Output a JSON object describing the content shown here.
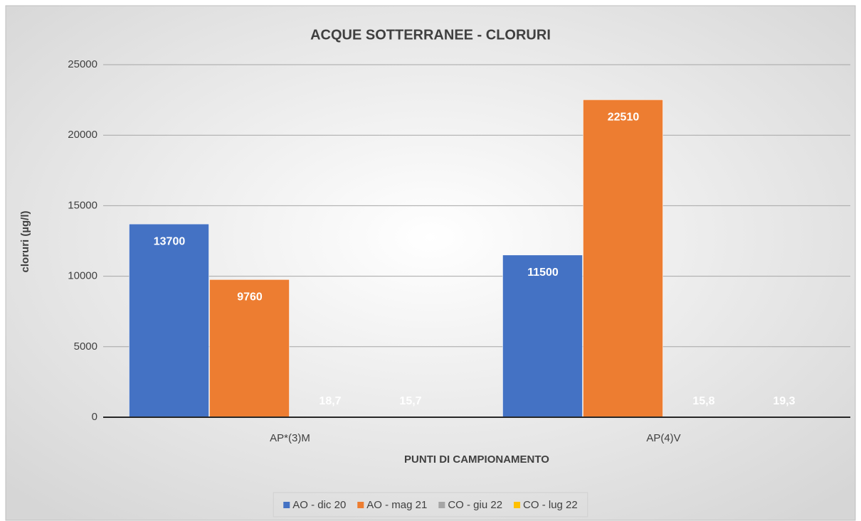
{
  "chart_data": {
    "type": "bar",
    "title": "ACQUE SOTTERRANEE - CLORURI",
    "y_label": "cloruri (µg/l)",
    "x_label": "PUNTI DI CAMPIONAMENTO",
    "categories": [
      "AP*(3)M",
      "AP(4)V"
    ],
    "series": [
      {
        "name": "AO - dic 20",
        "color": "#4472c4",
        "values": [
          13700,
          11500
        ],
        "value_labels": [
          "13700",
          "11500"
        ]
      },
      {
        "name": "AO - mag 21",
        "color": "#ed7d31",
        "values": [
          9760,
          22510
        ],
        "value_labels": [
          "9760",
          "22510"
        ]
      },
      {
        "name": "CO - giu 22",
        "color": "#a5a5a5",
        "values": [
          18.7,
          15.8
        ],
        "value_labels": [
          "18,7",
          "15,8"
        ]
      },
      {
        "name": "CO - lug 22",
        "color": "#ffc000",
        "values": [
          15.7,
          19.3
        ],
        "value_labels": [
          "15,7",
          "19,3"
        ]
      }
    ],
    "ylim": [
      0,
      25000
    ],
    "yticks": [
      0,
      5000,
      10000,
      15000,
      20000,
      25000
    ],
    "grid": true,
    "legend": "bottom"
  }
}
